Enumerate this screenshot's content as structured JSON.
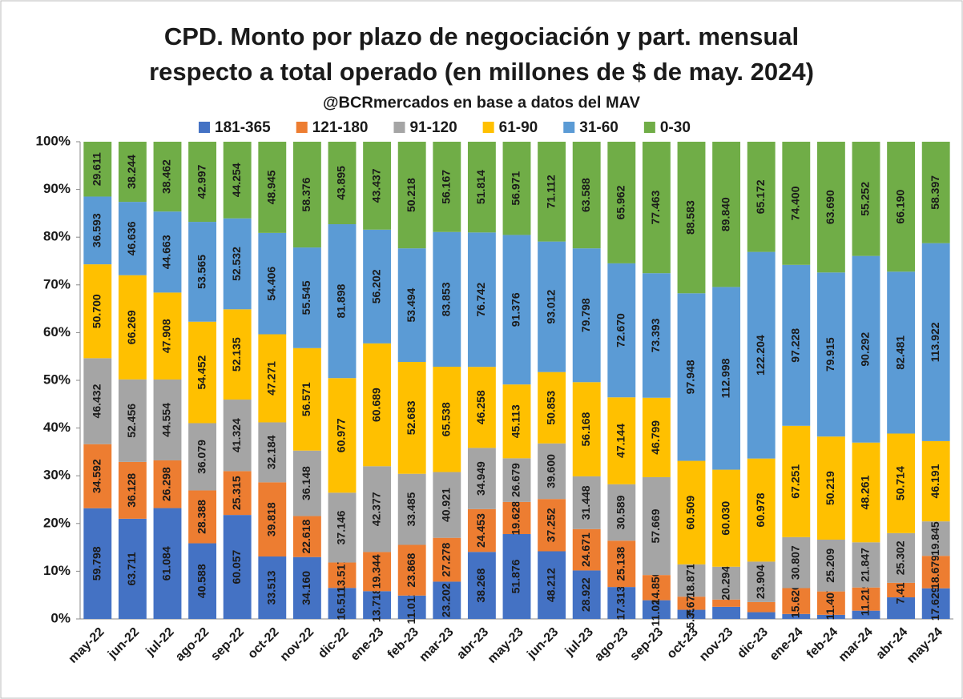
{
  "chart_data": {
    "type": "bar",
    "stack": "percent",
    "title": [
      "CPD. Monto por plazo de negociación y part. mensual",
      "respecto a total operado (en millones de $ de may. 2024)"
    ],
    "subtitle": "@BCRmercados en base a datos del MAV",
    "categories": [
      "may-22",
      "jun-22",
      "jul-22",
      "ago-22",
      "sep-22",
      "oct-22",
      "nov-22",
      "dic-22",
      "ene-23",
      "feb-23",
      "mar-23",
      "abr-23",
      "may-23",
      "jun-23",
      "jul-23",
      "ago-23",
      "sep-23",
      "oct-23",
      "nov-23",
      "dic-23",
      "ene-24",
      "feb-24",
      "mar-24",
      "abr-24",
      "may-24"
    ],
    "ylim": [
      0,
      100
    ],
    "yticks": [
      {
        "value": 0,
        "label": "0%"
      },
      {
        "value": 10,
        "label": "10%"
      },
      {
        "value": 20,
        "label": "20%"
      },
      {
        "value": 30,
        "label": "30%"
      },
      {
        "value": 40,
        "label": "40%"
      },
      {
        "value": 50,
        "label": "50%"
      },
      {
        "value": 60,
        "label": "60%"
      },
      {
        "value": 70,
        "label": "70%"
      },
      {
        "value": 80,
        "label": "80%"
      },
      {
        "value": 90,
        "label": "90%"
      },
      {
        "value": 100,
        "label": "100%"
      }
    ],
    "grid": false,
    "legend": "top",
    "series": [
      {
        "name": "181-365",
        "color": "#4472c4",
        "values": [
          59.798,
          63.711,
          61.084,
          40.588,
          60.057,
          33.513,
          34.16,
          16.511,
          13.718,
          11.012,
          23.202,
          38.268,
          51.876,
          48.212,
          28.922,
          17.313,
          11.024,
          5.354,
          7.5,
          4.0,
          3.0,
          2.0,
          4.0,
          11.0,
          17.629
        ],
        "value_labels": [
          "59.798",
          "63.711",
          "61.084",
          "40.588",
          "60.057",
          "33.513",
          "34.160",
          "16.511",
          "13.718",
          "11.012",
          "23.202",
          "38.268",
          "51.876",
          "48.212",
          "28.922",
          "17.313",
          "11.024",
          "5.354",
          null,
          null,
          null,
          null,
          null,
          null,
          "17.629"
        ]
      },
      {
        "name": "121-180",
        "color": "#ed7d31",
        "values": [
          34.592,
          36.128,
          26.298,
          28.388,
          25.315,
          39.818,
          22.618,
          13.517,
          19.344,
          23.868,
          27.278,
          24.453,
          19.628,
          37.252,
          24.671,
          25.138,
          14.85,
          7.67,
          4.5,
          6.0,
          15.62,
          11.407,
          11.219,
          7.419,
          18.679
        ],
        "value_labels": [
          "34.592",
          "36.128",
          "26.298",
          "28.388",
          "25.315",
          "39.818",
          "22.618",
          "13.517",
          "19.344",
          "23.868",
          "27.278",
          "24.453",
          "19.628",
          "37.252",
          "24.671",
          "25.138",
          "14.850",
          "7.670",
          null,
          null,
          "15.620",
          "11.407",
          "11.219",
          "7.419",
          "18.679"
        ]
      },
      {
        "name": "91-120",
        "color": "#a5a5a5",
        "values": [
          46.432,
          52.456,
          44.554,
          36.079,
          41.324,
          32.184,
          36.148,
          37.146,
          42.377,
          33.485,
          40.921,
          34.949,
          26.679,
          39.6,
          31.448,
          30.589,
          57.669,
          18.871,
          20.294,
          23.904,
          30.807,
          25.209,
          21.847,
          25.302,
          19.845
        ],
        "value_labels": [
          "46.432",
          "52.456",
          "44.554",
          "36.079",
          "41.324",
          "32.184",
          "36.148",
          "37.146",
          "42.377",
          "33.485",
          "40.921",
          "34.949",
          "26.679",
          "39.600",
          "31.448",
          "30.589",
          "57.669",
          "18.871",
          "20.294",
          "23.904",
          "30.807",
          "25.209",
          "21.847",
          "25.302",
          "19.845"
        ]
      },
      {
        "name": "61-90",
        "color": "#ffc000",
        "values": [
          50.7,
          66.269,
          47.908,
          54.452,
          52.135,
          47.271,
          56.571,
          60.977,
          60.689,
          52.683,
          65.538,
          46.258,
          45.113,
          50.853,
          56.168,
          47.144,
          46.799,
          60.509,
          60.03,
          60.978,
          67.251,
          50.219,
          48.261,
          50.714,
          46.191
        ],
        "value_labels": [
          "50.700",
          "66.269",
          "47.908",
          "54.452",
          "52.135",
          "47.271",
          "56.571",
          "60.977",
          "60.689",
          "52.683",
          "65.538",
          "46.258",
          "45.113",
          "50.853",
          "56.168",
          "47.144",
          "46.799",
          "60.509",
          "60.030",
          "60.978",
          "67.251",
          "50.219",
          "48.261",
          "50.714",
          "46.191"
        ]
      },
      {
        "name": "31-60",
        "color": "#5b9bd5",
        "values": [
          36.593,
          46.636,
          44.663,
          53.565,
          52.532,
          54.406,
          55.545,
          81.898,
          56.202,
          53.494,
          83.853,
          76.742,
          91.376,
          93.012,
          79.798,
          72.67,
          73.393,
          97.948,
          112.998,
          122.204,
          97.228,
          79.915,
          90.292,
          82.481,
          113.922
        ],
        "value_labels": [
          "36.593",
          "46.636",
          "44.663",
          "53.565",
          "52.532",
          "54.406",
          "55.545",
          "81.898",
          "56.202",
          "53.494",
          "83.853",
          "76.742",
          "91.376",
          "93.012",
          "79.798",
          "72.670",
          "73.393",
          "97.948",
          "112.998",
          "122.204",
          "97.228",
          "79.915",
          "90.292",
          "82.481",
          "113.922"
        ]
      },
      {
        "name": "0-30",
        "color": "#70ad47",
        "values": [
          29.611,
          38.244,
          38.462,
          42.997,
          44.254,
          48.945,
          58.376,
          43.895,
          43.437,
          50.218,
          56.167,
          51.814,
          56.971,
          71.112,
          63.588,
          65.962,
          77.463,
          88.583,
          89.84,
          65.172,
          74.4,
          63.69,
          55.252,
          66.19,
          58.397
        ],
        "value_labels": [
          "29.611",
          "38.244",
          "38.462",
          "42.997",
          "44.254",
          "48.945",
          "58.376",
          "43.895",
          "43.437",
          "50.218",
          "56.167",
          "51.814",
          "56.971",
          "71.112",
          "63.588",
          "65.962",
          "77.463",
          "88.583",
          "89.840",
          "65.172",
          "74.400",
          "63.690",
          "55.252",
          "66.190",
          "58.397"
        ]
      }
    ]
  }
}
